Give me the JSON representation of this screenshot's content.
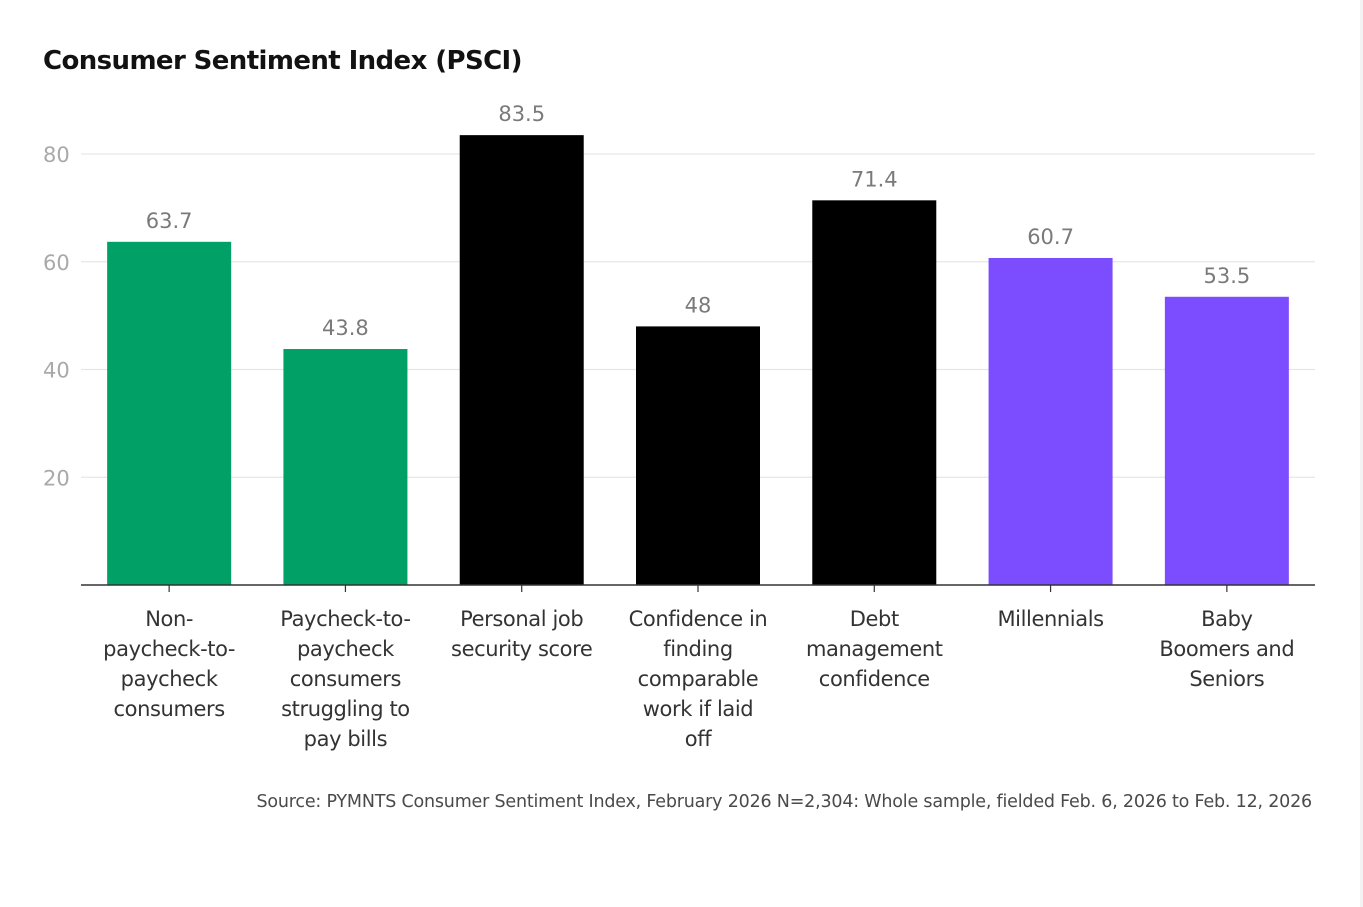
{
  "chart_data": {
    "type": "bar",
    "title": "Consumer Sentiment Index (PSCI)",
    "xlabel": "",
    "ylabel": "",
    "ylim": [
      0,
      80
    ],
    "yticks": [
      20,
      40,
      60,
      80
    ],
    "grid": true,
    "legend": "none",
    "categories": [
      "Non-paycheck-to-paycheck consumers",
      "Paycheck-to-paycheck consumers struggling to pay bills",
      "Personal job security score",
      "Confidence in finding comparable work if laid off",
      "Debt management confidence",
      "Millennials",
      "Baby Boomers and Seniors"
    ],
    "category_label_lines": [
      [
        "Non-",
        "paycheck-to-",
        "paycheck",
        "consumers"
      ],
      [
        "Paycheck-to-",
        "paycheck",
        "consumers",
        "struggling to",
        "pay bills"
      ],
      [
        "Personal job",
        "security score"
      ],
      [
        "Confidence in",
        "finding",
        "comparable",
        "work if laid",
        "off"
      ],
      [
        "Debt",
        "management",
        "confidence"
      ],
      [
        "Millennials"
      ],
      [
        "Baby",
        "Boomers and",
        "Seniors"
      ]
    ],
    "values": [
      63.7,
      43.8,
      83.5,
      48,
      71.4,
      60.7,
      53.5
    ],
    "data_labels": [
      "63.7",
      "43.8",
      "83.5",
      "48",
      "71.4",
      "60.7",
      "53.5"
    ],
    "bar_colors": [
      "#00a066",
      "#00a066",
      "#000000",
      "#000000",
      "#000000",
      "#7c4dff",
      "#7c4dff"
    ],
    "source": "Source: PYMNTS Consumer Sentiment Index, February 2026 N=2,304: Whole sample, fielded Feb. 6, 2026 to Feb. 12, 2026"
  },
  "colors": {
    "gridline": "#e6e6e6",
    "axis": "#333333"
  }
}
